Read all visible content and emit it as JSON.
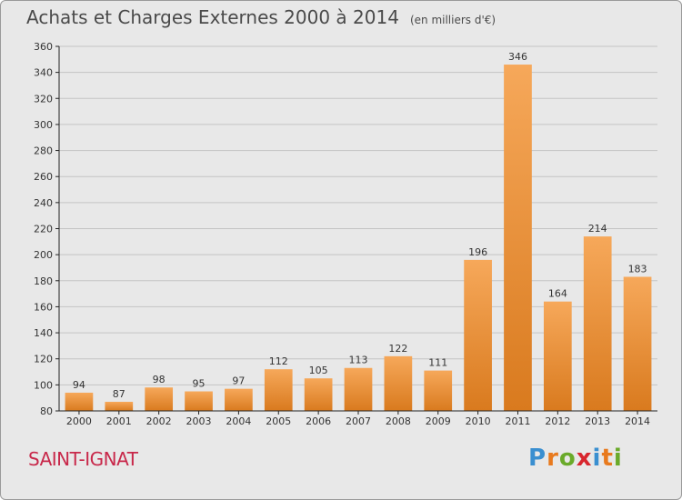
{
  "title": {
    "main": "Achats et Charges Externes 2000 à 2014",
    "unit": "(en milliers d'€)"
  },
  "commune": "SAINT-IGNAT",
  "logo": {
    "text": "Proxiti",
    "letters": [
      {
        "ch": "P",
        "color": "#3a8fd0"
      },
      {
        "ch": "r",
        "color": "#e87a1e"
      },
      {
        "ch": "o",
        "color": "#6aaa2a"
      },
      {
        "ch": "x",
        "color": "#d8262e"
      },
      {
        "ch": "i",
        "color": "#3a8fd0"
      },
      {
        "ch": "t",
        "color": "#e87a1e"
      },
      {
        "ch": "i",
        "color": "#6aaa2a"
      }
    ]
  },
  "colors": {
    "bar_light": "#f6a85a",
    "bar_dark": "#d97a1e",
    "grid": "#c4c4c4",
    "axis": "#222222"
  },
  "chart_data": {
    "type": "bar",
    "title": "Achats et Charges Externes 2000 à 2014",
    "subtitle": "(en milliers d'€)",
    "categories": [
      "2000",
      "2001",
      "2002",
      "2003",
      "2004",
      "2005",
      "2006",
      "2007",
      "2008",
      "2009",
      "2010",
      "2011",
      "2012",
      "2013",
      "2014"
    ],
    "values": [
      94,
      87,
      98,
      95,
      97,
      112,
      105,
      113,
      122,
      111,
      196,
      346,
      164,
      214,
      183
    ],
    "ylim": [
      80,
      360
    ],
    "yticks": [
      80,
      100,
      120,
      140,
      160,
      180,
      200,
      220,
      240,
      260,
      280,
      300,
      320,
      340,
      360
    ],
    "grid": true
  }
}
